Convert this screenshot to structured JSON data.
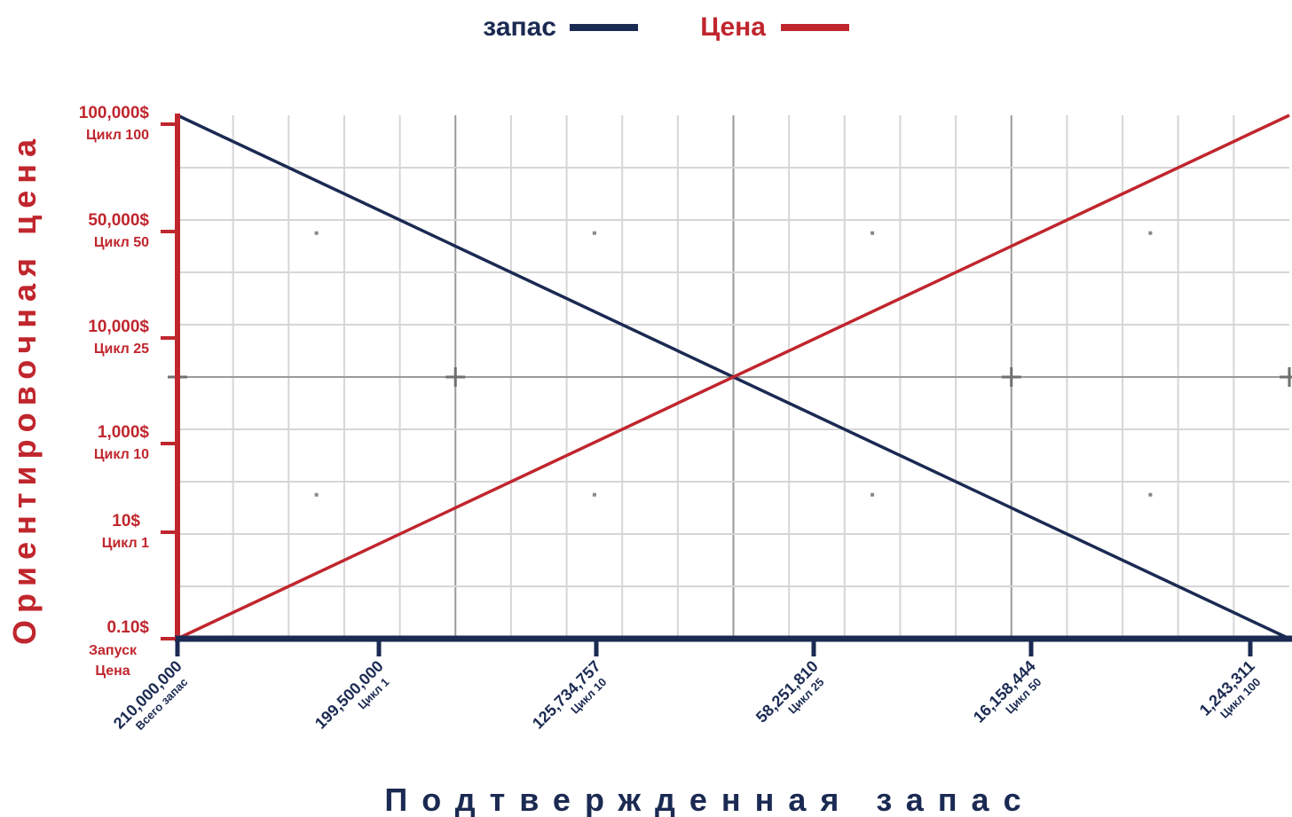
{
  "colors": {
    "supply": "#1b2a52",
    "price": "#c0262d",
    "grid_minor": "#d6d6d6",
    "grid_major": "#9a9a9a"
  },
  "chart_data": {
    "type": "line",
    "grid": true,
    "legend_position": "top-center",
    "xlabel": "Подтвержденная запас",
    "ylabel": "Ориентировочная цена",
    "x_ticks": [
      {
        "value": "210,000,000",
        "sub": "Всего запас"
      },
      {
        "value": "199,500,000",
        "sub": "Цикл 1"
      },
      {
        "value": "125,734,757",
        "sub": "Цикл 10"
      },
      {
        "value": "58,251,810",
        "sub": "Цикл 25"
      },
      {
        "value": "16,158,444",
        "sub": "Цикл 50"
      },
      {
        "value": "1,243,311",
        "sub": "Цикл 100"
      }
    ],
    "y_ticks": [
      {
        "value": "0.10$",
        "sub": "Запуск Цена"
      },
      {
        "value": "10$",
        "sub": "Цикл 1"
      },
      {
        "value": "1,000$",
        "sub": "Цикл 10"
      },
      {
        "value": "10,000$",
        "sub": "Цикл 25"
      },
      {
        "value": "50,000$",
        "sub": "Цикл 50"
      },
      {
        "value": "100,000$",
        "sub": "Цикл 100"
      }
    ],
    "series": [
      {
        "name": "запас",
        "trend": "decreasing",
        "x_range": [
          0,
          1
        ],
        "y_range": [
          1,
          0
        ]
      },
      {
        "name": "Цена",
        "trend": "increasing",
        "x_range": [
          0,
          1
        ],
        "y_range": [
          0,
          1
        ]
      }
    ]
  }
}
